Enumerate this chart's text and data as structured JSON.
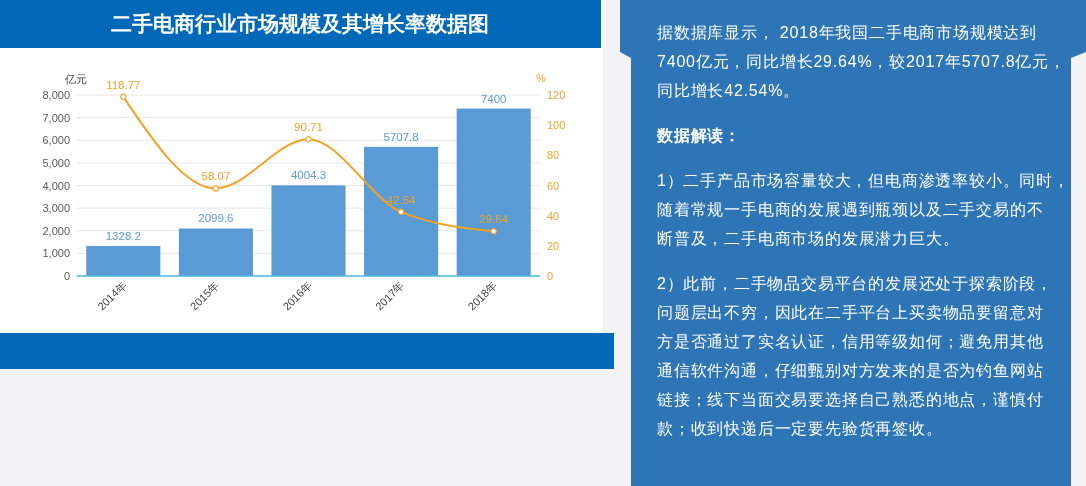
{
  "chart_data": [
    {
      "type": "bar",
      "title": "二手电商行业市场规模及其增长率数据图",
      "categories": [
        "2014年",
        "2015年",
        "2016年",
        "2017年",
        "2018年"
      ],
      "series": [
        {
          "color": "#5b9bd5",
          "values": [
            1328.2,
            2099.6,
            4004.3,
            5707.8,
            7400
          ]
        },
        {
          "type": "line",
          "axis": "y2",
          "color": "#f2a229",
          "values": [
            118.77,
            58.07,
            90.71,
            42.54,
            29.64
          ]
        }
      ],
      "ylabel": "亿元",
      "y2label": "%",
      "ylim": [
        0,
        8000
      ],
      "yticks": [
        0,
        {
          "value": 1000,
          "label": "1,000"
        },
        {
          "value": 2000,
          "label": "2,000"
        },
        {
          "value": 3000,
          "label": "3,000"
        },
        {
          "value": 4000,
          "label": "4,000"
        },
        {
          "value": 5000,
          "label": "5,000"
        },
        {
          "value": 6000,
          "label": "6,000"
        },
        {
          "value": 7000,
          "label": "7,000"
        },
        {
          "value": 8000,
          "label": "8,000"
        }
      ],
      "y2lim": [
        0,
        120
      ],
      "y2ticks": [
        0,
        20,
        40,
        60,
        80,
        100,
        120
      ],
      "grid": "y",
      "data_labels": true,
      "marker": "circle"
    },
    {
      "type": "other",
      "annotations": [
        "据数据库显示， 2018年我国二手电商市场规模达到7400亿元，同比增长29.64%，较2017年5707.8亿元，同比增长42.54%。",
        "数据解读：",
        "1）二手产品市场容量较大，但电商渗透率较小。同时，随着常规一手电商的发展遇到瓶颈以及二手交易的不断普及，二手电商市场的发展潜力巨大。",
        "2）此前，二手物品交易平台的发展还处于探索阶段，问题层出不穷，因此在二手平台上买卖物品要留意对方是否通过了实名认证，信用等级如何；避免用其他通信软件沟通，仔细甄别对方发来的是否为钓鱼网站链接；线下当面交易要选择自己熟悉的地点，谨慎付款；收到快递后一定要先验货再签收。"
      ]
    }
  ]
}
